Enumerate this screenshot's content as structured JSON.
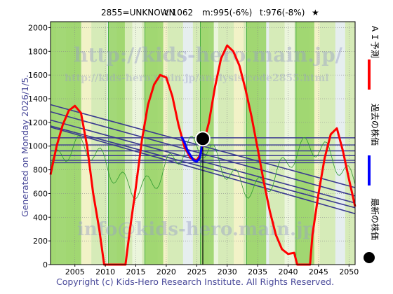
{
  "title": {
    "code": "2855=UNKNOWN",
    "current": "c:1062",
    "m": "m:995(-6%)",
    "t": "t:976(-8%)",
    "star": "★"
  },
  "side_label": "Generated on Monday 2026/1/5.",
  "footer": "Copyright (c) Kids-Hero Research Institute. All Rights Reserved.",
  "watermarks": {
    "top": "http://kids-hero.main.jp/",
    "mid": "http://kids-hero.main.jp/analysis/code2855.html",
    "bottom": "info@kids-hero.main.jp"
  },
  "legend": [
    {
      "label": "ＡＩ予測",
      "color": "#ff0000",
      "marker": "line"
    },
    {
      "label": "過去の株価",
      "color": "#0000ff",
      "marker": "line"
    },
    {
      "label": "最新の株価",
      "color": "#000000",
      "marker": "dot"
    }
  ],
  "chart_data": {
    "type": "line",
    "xlim": [
      2001,
      2051
    ],
    "ylim": [
      0,
      2050
    ],
    "x_ticks": [
      2005,
      2010,
      2015,
      2020,
      2025,
      2030,
      2035,
      2040,
      2045,
      2050
    ],
    "y_ticks": [
      0,
      200,
      400,
      600,
      800,
      1000,
      1200,
      1400,
      1600,
      1800,
      2000
    ],
    "grid": true,
    "latest_price": {
      "x": 2026.0,
      "y": 1062
    },
    "series": [
      {
        "name": "ＡＩ予測",
        "color": "#ff0000",
        "points": [
          [
            2001,
            760
          ],
          [
            2002,
            1000
          ],
          [
            2003,
            1180
          ],
          [
            2004,
            1300
          ],
          [
            2005,
            1340
          ],
          [
            2006,
            1280
          ],
          [
            2007,
            1000
          ],
          [
            2008,
            600
          ],
          [
            2009,
            300
          ],
          [
            2009.8,
            0
          ],
          [
            2013.3,
            0
          ],
          [
            2014,
            280
          ],
          [
            2015,
            650
          ],
          [
            2016,
            1050
          ],
          [
            2017,
            1350
          ],
          [
            2018,
            1520
          ],
          [
            2019,
            1600
          ],
          [
            2020,
            1580
          ],
          [
            2021,
            1420
          ],
          [
            2022,
            1180
          ],
          [
            2023,
            990
          ],
          [
            2024,
            900
          ],
          [
            2025,
            880
          ],
          [
            2025.5,
            920
          ],
          [
            2026,
            1000
          ],
          [
            2027,
            1200
          ],
          [
            2028,
            1500
          ],
          [
            2029,
            1740
          ],
          [
            2030,
            1850
          ],
          [
            2031,
            1800
          ],
          [
            2032,
            1680
          ],
          [
            2033,
            1480
          ],
          [
            2034,
            1250
          ],
          [
            2035,
            980
          ],
          [
            2036,
            700
          ],
          [
            2037,
            450
          ],
          [
            2038,
            250
          ],
          [
            2039,
            130
          ],
          [
            2040,
            90
          ],
          [
            2041,
            100
          ],
          [
            2041.5,
            0
          ],
          [
            2043.6,
            0
          ],
          [
            2044,
            250
          ],
          [
            2045,
            600
          ],
          [
            2046,
            900
          ],
          [
            2047,
            1100
          ],
          [
            2048,
            1150
          ],
          [
            2049,
            960
          ],
          [
            2050,
            720
          ],
          [
            2051,
            490
          ]
        ]
      },
      {
        "name": "過去の株価",
        "color": "#0000ff",
        "points": [
          [
            2022.5,
            1080
          ],
          [
            2023,
            1030
          ],
          [
            2023.5,
            960
          ],
          [
            2024,
            920
          ],
          [
            2024.5,
            880
          ],
          [
            2025,
            870
          ],
          [
            2025.5,
            900
          ],
          [
            2026,
            1040
          ],
          [
            2026.2,
            1062
          ]
        ]
      }
    ],
    "trend_lines": [
      {
        "x1": 2001,
        "y1": 1350,
        "x2": 2051,
        "y2": 650
      },
      {
        "x1": 2001,
        "y1": 1290,
        "x2": 2051,
        "y2": 580
      },
      {
        "x1": 2001,
        "y1": 1220,
        "x2": 2051,
        "y2": 520
      },
      {
        "x1": 2001,
        "y1": 1170,
        "x2": 2051,
        "y2": 480
      },
      {
        "x1": 2001,
        "y1": 1160,
        "x2": 2051,
        "y2": 430
      }
    ],
    "hlines": [
      1070,
      1010,
      960,
      920,
      880,
      860
    ],
    "band_spans": [
      [
        2001,
        2006
      ],
      [
        2010.5,
        2013.2
      ],
      [
        2016.5,
        2019.5
      ],
      [
        2025.6,
        2027.8
      ],
      [
        2033.2,
        2036.4
      ],
      [
        2041.3,
        2044.3
      ]
    ]
  }
}
